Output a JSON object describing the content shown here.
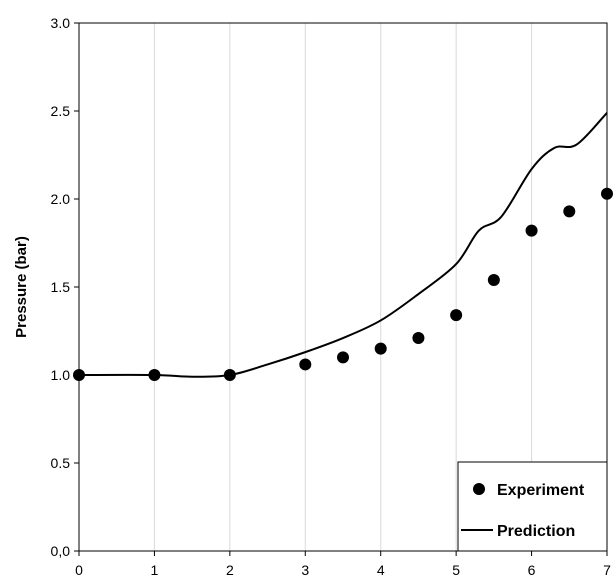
{
  "chart_data": {
    "type": "scatter",
    "title": "",
    "xlabel": "",
    "ylabel": "Pressure (bar)",
    "xlim": [
      0,
      7
    ],
    "ylim": [
      0,
      3
    ],
    "x_ticks": [
      0,
      1,
      2,
      3,
      4,
      5,
      6,
      7
    ],
    "y_ticks": [
      0,
      0.5,
      1,
      1.5,
      2,
      2.5,
      3
    ],
    "x_tick_labels": [
      "0",
      "1",
      "2",
      "3",
      "4",
      "5",
      "6",
      "7"
    ],
    "y_tick_labels": [
      "0,0",
      "0.5",
      "1.0",
      "1.5",
      "2.0",
      "2.5",
      "3.0"
    ],
    "grid": "vertical",
    "legend_position": "bottom-right",
    "series": [
      {
        "name": "Experiment",
        "style": "markers",
        "color": "#000000",
        "x": [
          0,
          1,
          2,
          3,
          3.5,
          4,
          4.5,
          5,
          5.5,
          6,
          6.5,
          7
        ],
        "y": [
          1.0,
          1.0,
          1.0,
          1.06,
          1.1,
          1.15,
          1.21,
          1.34,
          1.54,
          1.82,
          1.93,
          2.03
        ]
      },
      {
        "name": "Prediction",
        "style": "line",
        "color": "#000000",
        "x": [
          0,
          1,
          1.5,
          2,
          2.5,
          3,
          3.5,
          4,
          4.5,
          5,
          5.3,
          5.6,
          6,
          6.3,
          6.6,
          7
        ],
        "y": [
          1.0,
          1.0,
          0.99,
          1.0,
          1.06,
          1.13,
          1.21,
          1.31,
          1.46,
          1.63,
          1.82,
          1.9,
          2.17,
          2.29,
          2.31,
          2.49
        ]
      }
    ]
  }
}
